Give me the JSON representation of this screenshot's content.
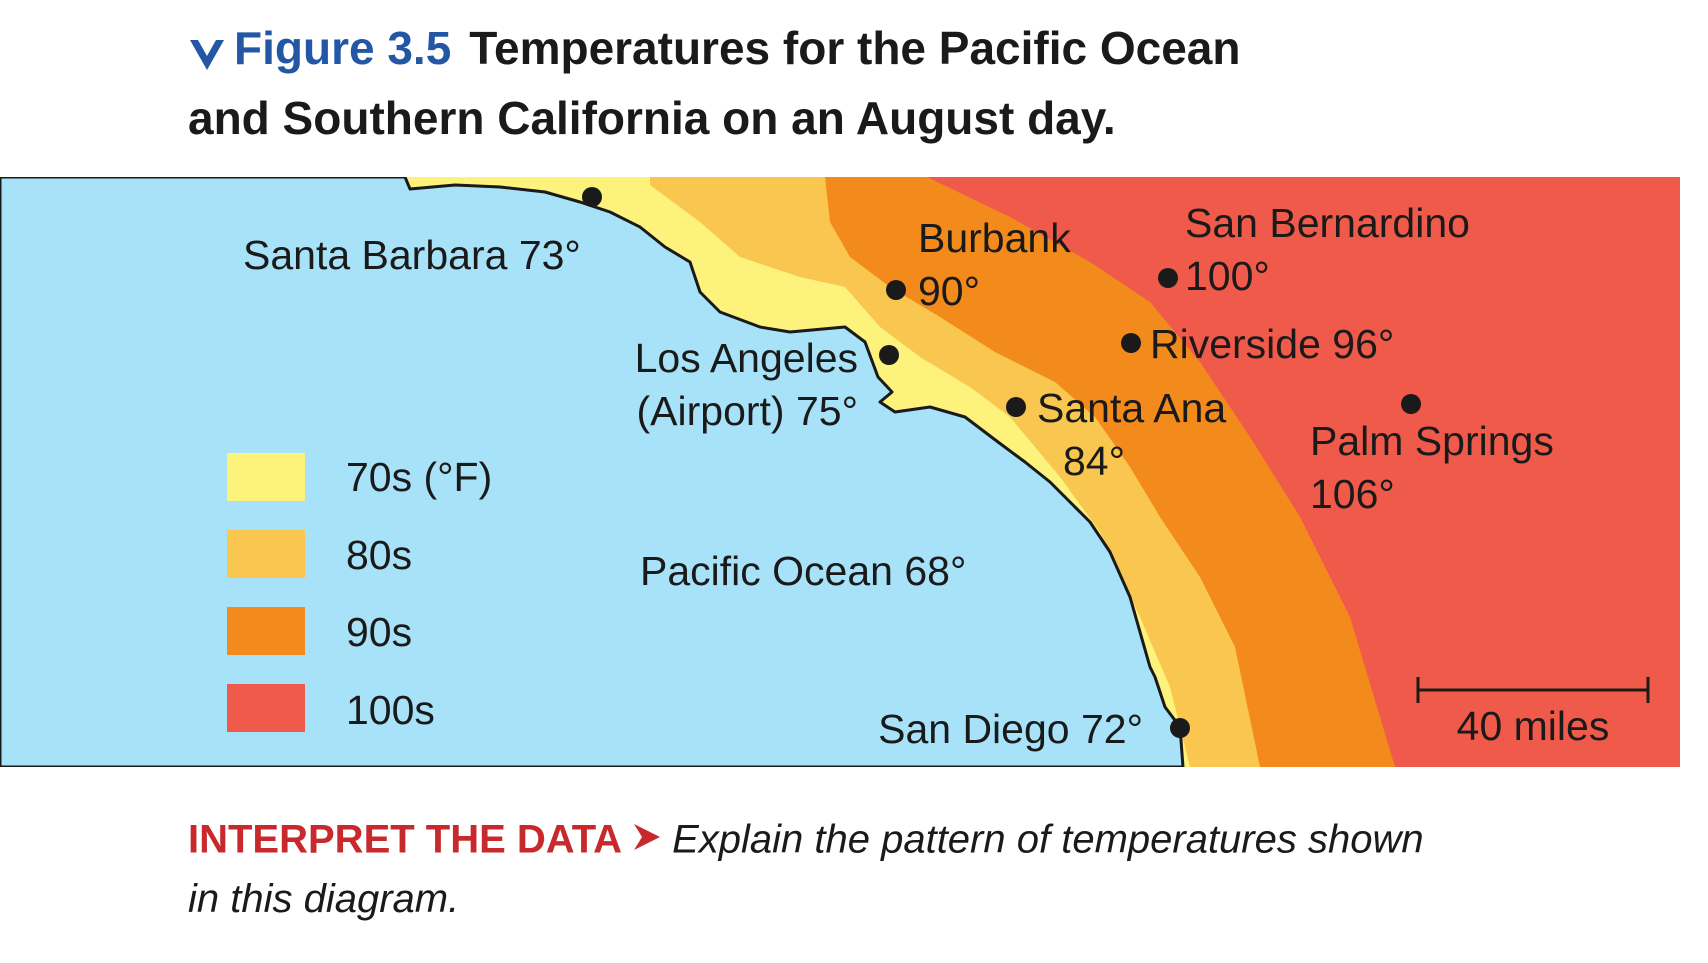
{
  "figure": {
    "label": "Figure 3.5",
    "title_line1": "Temperatures for the Pacific Ocean",
    "title_line2": "and Southern California on an August day."
  },
  "cities": [
    {
      "name": "Santa Barbara",
      "temp": "73°"
    },
    {
      "name": "Burbank",
      "temp": "90°"
    },
    {
      "name": "San Bernardino",
      "temp": "100°"
    },
    {
      "name": "Riverside",
      "temp": "96°"
    },
    {
      "name": "Los Angeles",
      "sub": "(Airport)",
      "temp": "75°"
    },
    {
      "name": "Santa Ana",
      "temp": "84°"
    },
    {
      "name": "Palm Springs",
      "temp": "106°"
    },
    {
      "name": "San Diego",
      "temp": "72°"
    }
  ],
  "ocean": {
    "name": "Pacific Ocean",
    "temp": "68°"
  },
  "legend": [
    {
      "label": "70s (°F)",
      "color": "#fdf27c"
    },
    {
      "label": "80s",
      "color": "#f9c74f"
    },
    {
      "label": "90s",
      "color": "#f38a1c"
    },
    {
      "label": "100s",
      "color": "#f05a4a"
    }
  ],
  "scale_bar": {
    "label": "40 miles"
  },
  "colors": {
    "ocean": "#a8e2f8",
    "title_blue": "#2456a6",
    "interpret_red": "#c8292d"
  },
  "footer": {
    "heading": "INTERPRET THE DATA",
    "prompt_line1": "Explain the pattern of temperatures shown",
    "prompt_line2": "in this diagram."
  }
}
